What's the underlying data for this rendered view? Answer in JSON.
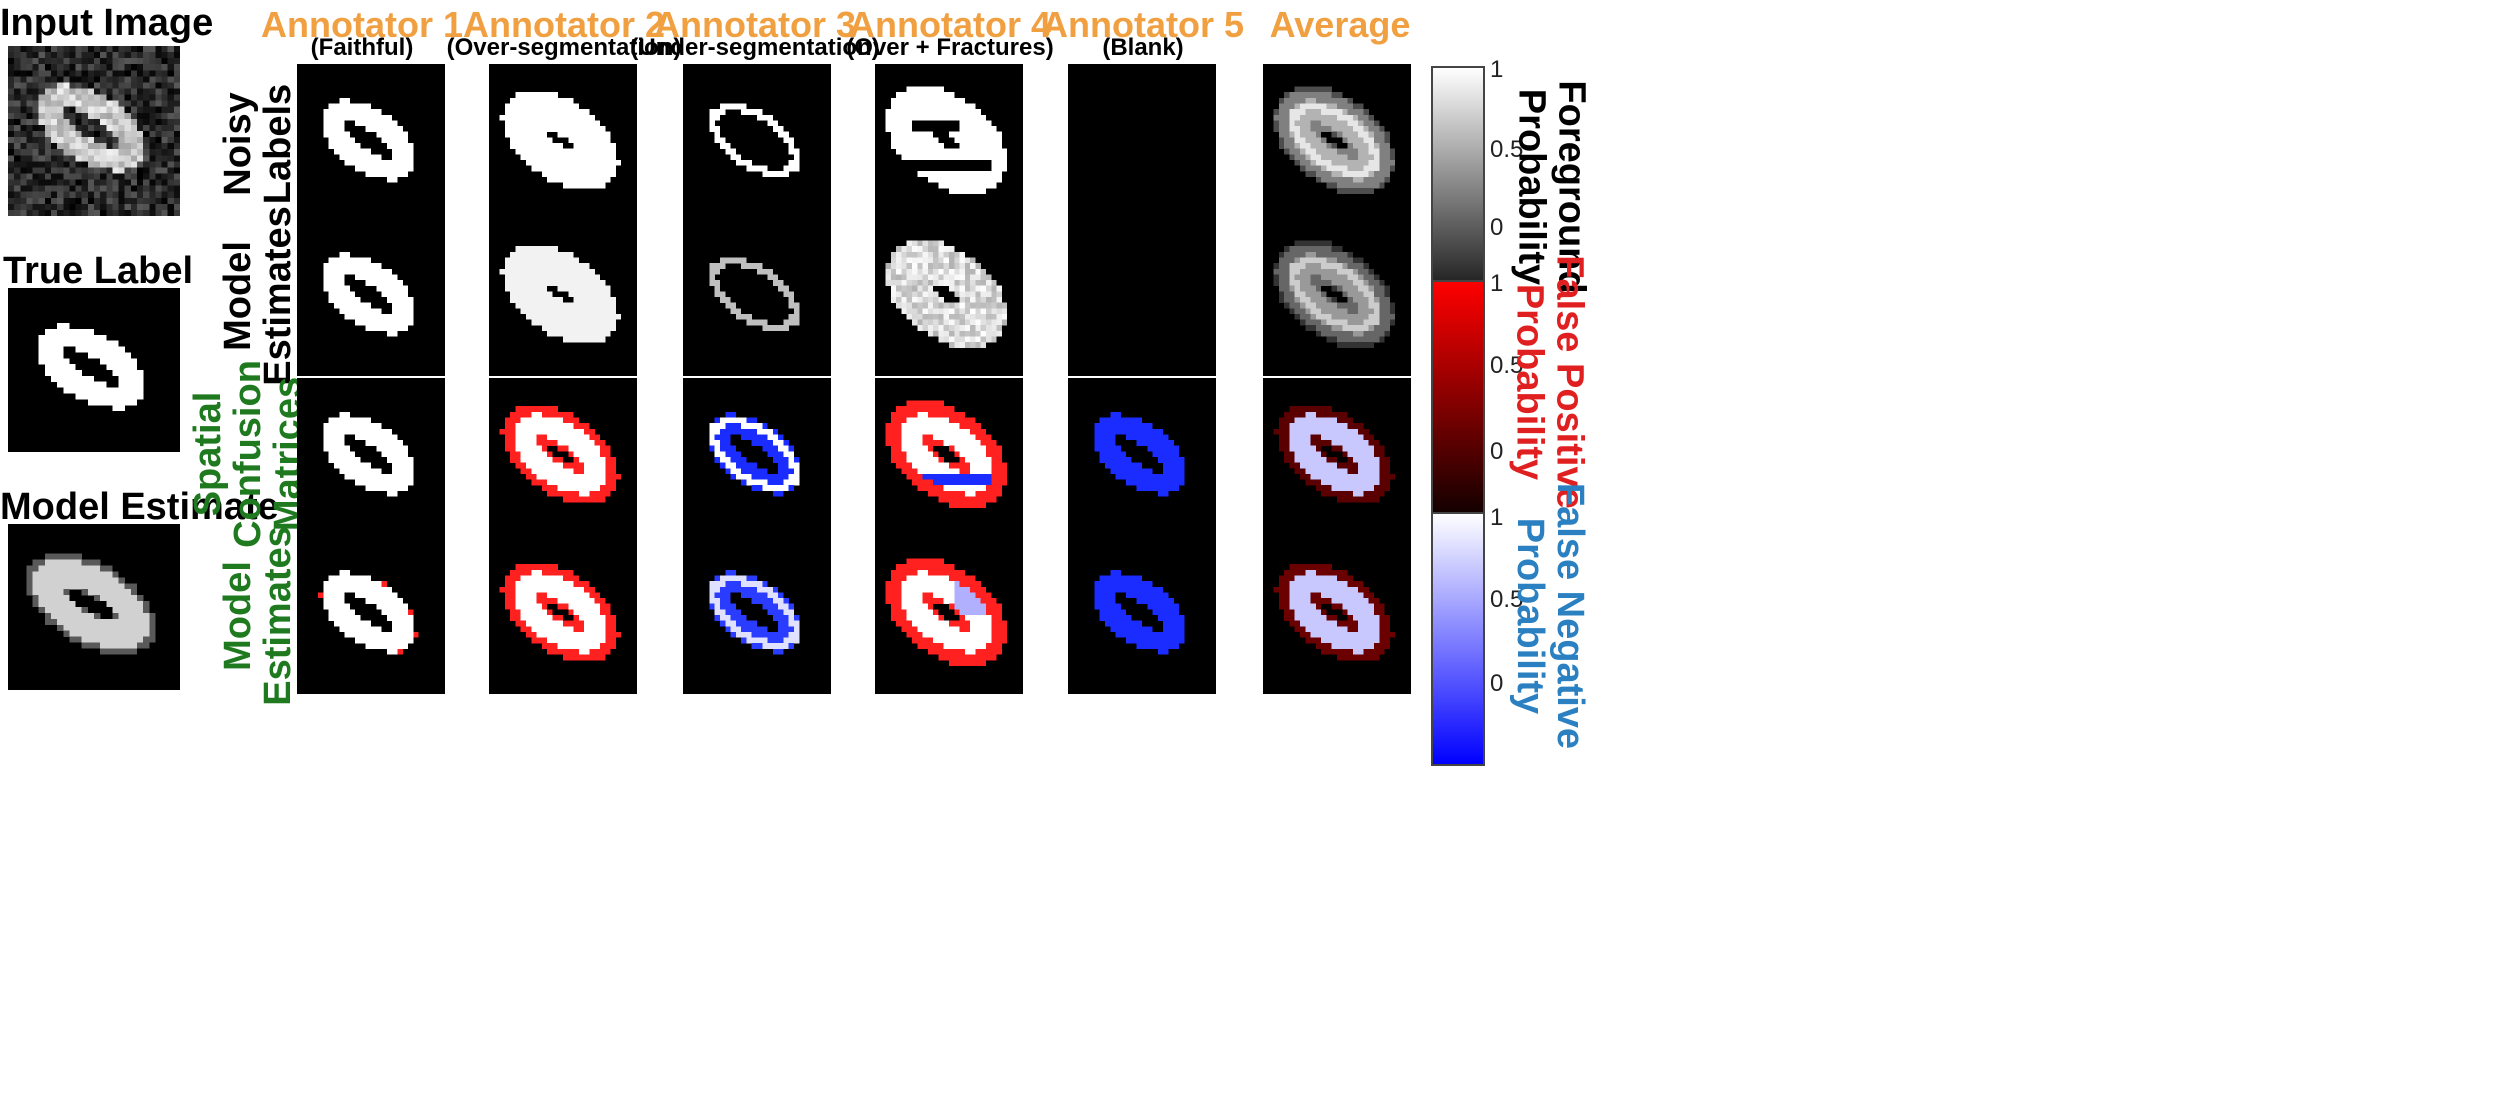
{
  "left": {
    "input_title": "Input Image",
    "true_title": "True Label",
    "model_title": "Model Estimate"
  },
  "columns": [
    {
      "title": "Annotator 1",
      "subtitle": "(Faithful)"
    },
    {
      "title": "Annotator 2",
      "subtitle": "(Over-segmentation)"
    },
    {
      "title": "Annotator 3",
      "subtitle": "(Under-segmentation)"
    },
    {
      "title": "Annotator 4",
      "subtitle": "(Over + Fractures)"
    },
    {
      "title": "Annotator 5",
      "subtitle": "(Blank)"
    },
    {
      "title": "Average",
      "subtitle": ""
    }
  ],
  "rows": [
    {
      "line1": "Noisy",
      "line2": "Labels",
      "color": "#000000"
    },
    {
      "line1": "Model",
      "line2": "Estimates",
      "color": "#000000"
    },
    {
      "line1": "Spatial",
      "line2": "Confusion",
      "line3": "Matrices",
      "color": "#1f7a1f"
    },
    {
      "line1": "Model",
      "line2": "Estimates",
      "color": "#1f7a1f"
    }
  ],
  "colorbars": [
    {
      "line1": "Foreground",
      "line2": "Probability",
      "color": "#000000",
      "ticks": [
        "1",
        "0.5",
        "0"
      ],
      "gradient": [
        "#ffffff",
        "#000000"
      ]
    },
    {
      "line1": "False Positive",
      "line2": "Probability",
      "color": "#e02020",
      "ticks": [
        "1",
        "0.5",
        "0"
      ],
      "gradient": [
        "#ff0000",
        "#000000"
      ]
    },
    {
      "line1": "False Negative",
      "line2": "Probability",
      "color": "#2a80c0",
      "ticks": [
        "1",
        "0.5",
        "0"
      ],
      "gradient": [
        "#ffffff",
        "#0000ff"
      ]
    }
  ],
  "colors": {
    "header_orange": "#f0a040",
    "label_green": "#1f7a1f",
    "fp_red": "#ff2020",
    "fn_blue": "#1a2cff"
  }
}
